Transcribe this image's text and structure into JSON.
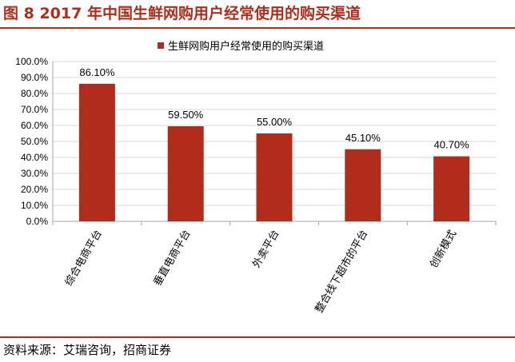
{
  "figure_title": "图 8 2017 年中国生鲜网购用户经常使用的购买渠道",
  "source": "资料来源：艾瑞咨询，招商证券",
  "colors": {
    "accent": "#b22c1b",
    "bar": "#b22c1b"
  },
  "chart_data": {
    "type": "bar",
    "categories": [
      "综合电商平台",
      "垂直电商平台",
      "外卖平台",
      "整合线下超市的平台",
      "创新模式"
    ],
    "series": [
      {
        "name": "生鲜网购用户经常使用的购买渠道",
        "values": [
          86.1,
          59.5,
          55.0,
          45.1,
          40.7
        ]
      }
    ],
    "data_labels": [
      "86.10%",
      "59.50%",
      "55.00%",
      "45.10%",
      "40.70%"
    ],
    "y_ticks": [
      "0.0%",
      "10.0%",
      "20.0%",
      "30.0%",
      "40.0%",
      "50.0%",
      "60.0%",
      "70.0%",
      "80.0%",
      "90.0%",
      "100.0%"
    ],
    "ylim": [
      0,
      100
    ],
    "grid": true,
    "legend_position": "top"
  }
}
